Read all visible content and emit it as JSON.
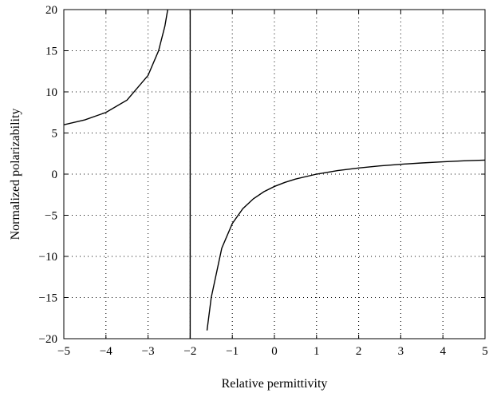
{
  "chart_data": {
    "type": "line",
    "title": "",
    "xlabel": "Relative permittivity",
    "ylabel": "Normalized polarizability",
    "xlim": [
      -5,
      5
    ],
    "ylim": [
      -20,
      20
    ],
    "x_ticks": [
      -5,
      -4,
      -3,
      -2,
      -1,
      0,
      1,
      2,
      3,
      4,
      5
    ],
    "x_tick_labels": [
      "−5",
      "−4",
      "−3",
      "−2",
      "−1",
      "0",
      "1",
      "2",
      "3",
      "4",
      "5"
    ],
    "y_ticks": [
      -20,
      -15,
      -10,
      -5,
      0,
      5,
      10,
      15,
      20
    ],
    "y_tick_labels": [
      "−20",
      "−15",
      "−10",
      "−5",
      "0",
      "5",
      "10",
      "15",
      "20"
    ],
    "grid": true,
    "grid_style": "dotted",
    "series": [
      {
        "color": "#000000",
        "x": [
          -5,
          -4.5,
          -4,
          -3.5,
          -3,
          -2.75,
          -2.6,
          -2.5,
          -1.6,
          -1.5,
          -1.25,
          -1,
          -0.75,
          -0.5,
          -0.25,
          0,
          0.25,
          0.5,
          1,
          1.5,
          2,
          2.5,
          3,
          3.5,
          4,
          4.5,
          5
        ],
        "y": [
          6,
          6.6,
          7.5,
          9,
          12,
          15,
          18,
          21,
          -19,
          -15,
          -9,
          -6,
          -4.2,
          -3,
          -2.14,
          -1.5,
          -1,
          -0.6,
          0,
          0.43,
          0.75,
          1,
          1.2,
          1.36,
          1.5,
          1.62,
          1.71
        ]
      }
    ],
    "vertical_lines": [
      -2
    ]
  }
}
